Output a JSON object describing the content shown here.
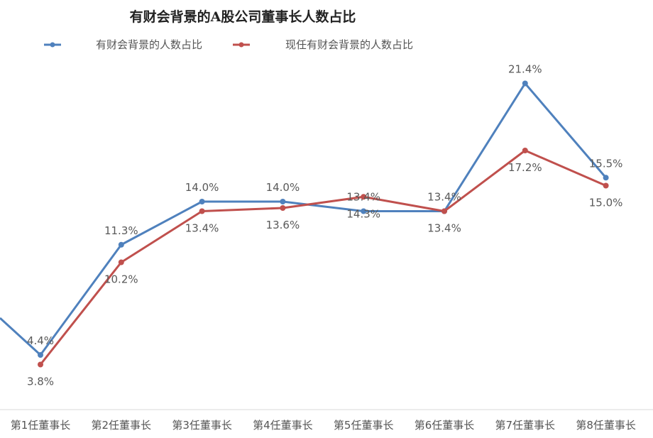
{
  "chart_data": {
    "type": "line",
    "title": "有财会背景的A股公司董事长人数占比",
    "xlabel": "",
    "ylabel": "",
    "categories": [
      "第1任董事长",
      "第2任董事长",
      "第3任董事长",
      "第4任董事长",
      "第5任董事长",
      "第6任董事长",
      "第7任董事长",
      "第8任董事长"
    ],
    "series": [
      {
        "name": "有财会背景的人数占比",
        "color": "#4F81BD",
        "values": [
          4.4,
          11.3,
          14.0,
          14.0,
          13.4,
          13.4,
          21.4,
          15.5
        ],
        "labels": [
          "4.4%",
          "11.3%",
          "14.0%",
          "14.0%",
          "13.4%",
          "13.4%",
          "21.4%",
          "15.5%"
        ]
      },
      {
        "name": "现任有财会背景的人数占比",
        "color": "#C0504D",
        "values": [
          3.8,
          10.2,
          13.4,
          13.6,
          14.3,
          13.4,
          17.2,
          15.0
        ],
        "labels": [
          "3.8%",
          "10.2%",
          "13.4%",
          "13.6%",
          "14.3%",
          "13.4%",
          "17.2%",
          "15.0%"
        ]
      }
    ],
    "legend_position": "top-left",
    "grid": false,
    "markers": true,
    "y_axis_visible": false
  }
}
